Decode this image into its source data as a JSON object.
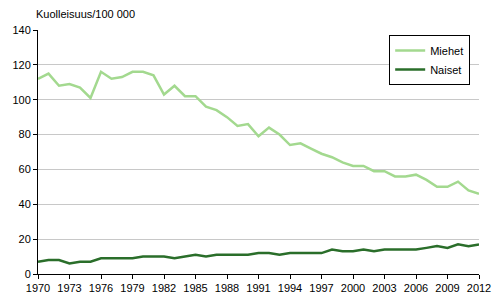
{
  "chart_data": {
    "type": "line",
    "ylabel": "Kuolleisuus/100 000",
    "x": [
      1970,
      1971,
      1972,
      1973,
      1974,
      1975,
      1976,
      1977,
      1978,
      1979,
      1980,
      1981,
      1982,
      1983,
      1984,
      1985,
      1986,
      1987,
      1988,
      1989,
      1990,
      1991,
      1992,
      1993,
      1994,
      1995,
      1996,
      1997,
      1998,
      1999,
      2000,
      2001,
      2002,
      2003,
      2004,
      2005,
      2006,
      2007,
      2008,
      2009,
      2010,
      2011,
      2012
    ],
    "series": [
      {
        "name": "Miehet",
        "color": "#a3d98f",
        "values": [
          112,
          115,
          108,
          109,
          107,
          101,
          116,
          112,
          113,
          116,
          116,
          114,
          103,
          108,
          102,
          102,
          96,
          94,
          90,
          85,
          86,
          79,
          84,
          80,
          74,
          75,
          72,
          69,
          67,
          64,
          62,
          62,
          59,
          59,
          56,
          56,
          57,
          54,
          50,
          50,
          53,
          48,
          46
        ]
      },
      {
        "name": "Naiset",
        "color": "#2a6e2a",
        "values": [
          7,
          8,
          8,
          6,
          7,
          7,
          9,
          9,
          9,
          9,
          10,
          10,
          10,
          9,
          10,
          11,
          10,
          11,
          11,
          11,
          11,
          12,
          12,
          11,
          12,
          12,
          12,
          12,
          14,
          13,
          13,
          14,
          13,
          14,
          14,
          14,
          14,
          15,
          16,
          15,
          17,
          16,
          17
        ]
      }
    ],
    "xlim": [
      1970,
      2012
    ],
    "xticks": [
      1970,
      1973,
      1976,
      1979,
      1982,
      1985,
      1988,
      1991,
      1994,
      1997,
      2000,
      2003,
      2006,
      2009,
      2012
    ],
    "ylim": [
      0,
      140
    ],
    "yticks": [
      0,
      20,
      40,
      60,
      80,
      100,
      120,
      140
    ],
    "grid": true,
    "legend": "top right"
  }
}
